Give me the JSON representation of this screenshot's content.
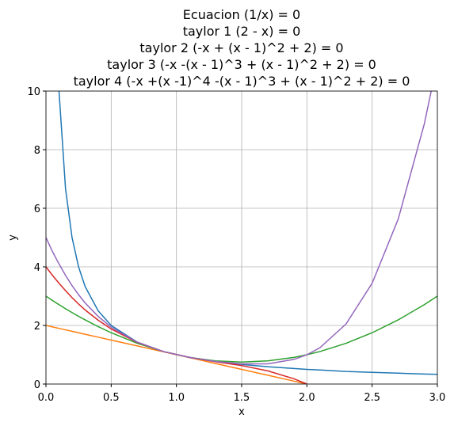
{
  "chart_data": {
    "type": "line",
    "title": [
      "Ecuacion (1/x) = 0",
      "taylor 1 (2 - x) = 0",
      "taylor 2 (-x + (x - 1)^2 + 2) = 0",
      "taylor 3 (-x -(x - 1)^3 + (x - 1)^2 + 2) = 0",
      "taylor 4 (-x +(x -1)^4 -(x - 1)^3 + (x - 1)^2 + 2) = 0"
    ],
    "xlabel": "x",
    "ylabel": "y",
    "x": [
      0,
      0.05,
      0.1,
      0.15,
      0.2,
      0.25,
      0.3,
      0.4,
      0.5,
      0.7,
      0.9,
      1.1,
      1.3,
      1.5,
      1.7,
      1.9,
      2.0,
      2.1,
      2.3,
      2.5,
      2.7,
      2.9,
      3.0
    ],
    "series": [
      {
        "color": "#1f77b4",
        "values": [
          null,
          20,
          10,
          6.67,
          5,
          4,
          3.33,
          2.5,
          2,
          1.43,
          1.11,
          0.91,
          0.77,
          0.67,
          0.59,
          0.53,
          0.5,
          0.48,
          0.43,
          0.4,
          0.37,
          0.34,
          0.33
        ]
      },
      {
        "color": "#ff7f0e",
        "values": [
          2,
          1.95,
          1.9,
          1.85,
          1.8,
          1.75,
          1.7,
          1.6,
          1.5,
          1.3,
          1.1,
          0.9,
          0.7,
          0.5,
          0.3,
          0.1,
          0,
          null,
          null,
          null,
          null,
          null,
          null
        ]
      },
      {
        "color": "#2ca02c",
        "values": [
          3,
          2.85,
          2.71,
          2.57,
          2.44,
          2.31,
          2.19,
          1.96,
          1.75,
          1.39,
          1.11,
          0.91,
          0.79,
          0.75,
          0.79,
          0.91,
          1,
          1.11,
          1.39,
          1.75,
          2.19,
          2.71,
          3
        ]
      },
      {
        "color": "#d62728",
        "values": [
          4,
          3.71,
          3.44,
          3.19,
          2.95,
          2.73,
          2.53,
          2.18,
          1.88,
          1.42,
          1.11,
          0.91,
          0.76,
          0.63,
          0.45,
          0.18,
          0,
          null,
          null,
          null,
          null,
          null,
          null
        ]
      },
      {
        "color": "#9467bd",
        "values": [
          5,
          4.52,
          4.1,
          3.71,
          3.36,
          3.05,
          2.77,
          2.31,
          1.94,
          1.43,
          1.11,
          0.91,
          0.77,
          0.69,
          0.69,
          0.84,
          1,
          1.24,
          2.05,
          3.44,
          5.63,
          8.88,
          11
        ]
      }
    ],
    "xlim": [
      0,
      3
    ],
    "ylim": [
      0,
      10
    ],
    "xticks": [
      {
        "value": 0,
        "label": "0.0"
      },
      {
        "value": 0.5,
        "label": "0.5"
      },
      {
        "value": 1,
        "label": "1.0"
      },
      {
        "value": 1.5,
        "label": "1.5"
      },
      {
        "value": 2,
        "label": "2.0"
      },
      {
        "value": 2.5,
        "label": "2.5"
      },
      {
        "value": 3,
        "label": "3.0"
      }
    ],
    "yticks": [
      0,
      2,
      4,
      6,
      8,
      10
    ],
    "grid": true
  }
}
